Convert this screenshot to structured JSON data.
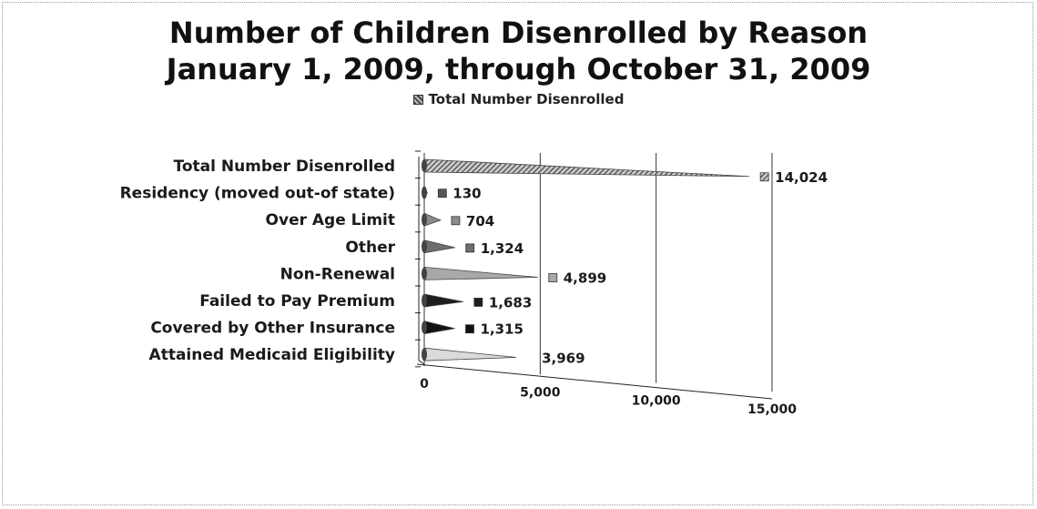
{
  "chart_data": {
    "type": "bar",
    "orientation": "horizontal",
    "style": "3d-cone",
    "title_line1": "Number of Children Disenrolled by Reason",
    "title_line2": "January 1, 2009, through October 31, 2009",
    "categories": [
      "Total Number Disenrolled",
      "Residency (moved out-of state)",
      "Over Age Limit",
      "Other",
      "Non-Renewal",
      "Failed to Pay Premium",
      "Covered by Other Insurance",
      "Attained Medicaid Eligibility"
    ],
    "series": [
      {
        "name": "Total Number Disenrolled",
        "values": [
          14024,
          130,
          704,
          1324,
          4899,
          1683,
          1315,
          3969
        ],
        "labels": [
          "14,024",
          "130",
          "704",
          "1,324",
          "4,899",
          "1,683",
          "1,315",
          "3,969"
        ]
      }
    ],
    "xlim": [
      0,
      15000
    ],
    "xticks": [
      {
        "value": 0,
        "label": "0"
      },
      {
        "value": 5000,
        "label": "5,000"
      },
      {
        "value": 10000,
        "label": "10,000"
      },
      {
        "value": 15000,
        "label": "15,000"
      }
    ],
    "legend_position": "top",
    "grid": true
  }
}
